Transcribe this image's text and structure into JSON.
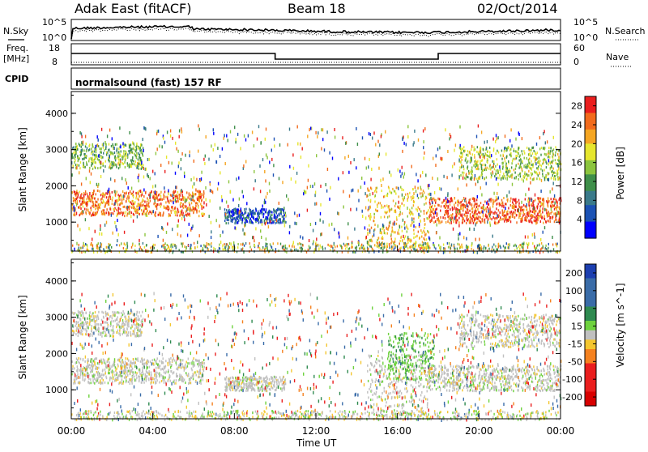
{
  "header": {
    "title": "Adak East (fitACF)",
    "beam": "Beam 18",
    "date": "02/Oct/2014"
  },
  "labels": {
    "nsky": "N.Sky",
    "nsearch": "N.Search",
    "freq_top": "Freq.",
    "freq_unit": "[MHz]",
    "nave": "Nave",
    "cpid": "CPID",
    "cpid_value": "normalsound (fast) 157 RF",
    "noise_tick_hi": "10^5",
    "noise_tick_lo": "10^0",
    "freq_tick_hi": "18",
    "freq_tick_lo": "8",
    "nave_tick_hi": "60",
    "nave_tick_lo": "0"
  },
  "colors": {
    "power_scale": [
      "#0000ff",
      "#1c52b4",
      "#3a7a8a",
      "#3f8f4a",
      "#8cc53e",
      "#e6e62e",
      "#f5a623",
      "#f26b1d",
      "#ea1e1e"
    ],
    "velocity_scale": [
      "#1c3fb0",
      "#3a6ca8",
      "#2f8a50",
      "#6ed23e",
      "#c0c0c0",
      "#c0c0c0",
      "#f4c630",
      "#f58220",
      "#ea1e1e",
      "#d80000"
    ]
  },
  "chart_data": [
    {
      "type": "heatmap",
      "title": "",
      "xlabel": "Time UT",
      "ylabel": "Slant Range [km]",
      "x_ticks": [
        "00:00",
        "04:00",
        "08:00",
        "12:00",
        "16:00",
        "20:00",
        "00:00"
      ],
      "y_ticks": [
        "1000",
        "2000",
        "3000",
        "4000"
      ],
      "ylim": [
        200,
        4600
      ],
      "xlim_hours": [
        0,
        24
      ],
      "colorbar": {
        "label": "Power [dB]",
        "ticks": [
          "4",
          "8",
          "12",
          "16",
          "20",
          "24",
          "28"
        ],
        "range": [
          0,
          30
        ]
      },
      "features": [
        {
          "start_h": 0.0,
          "end_h": 6.5,
          "range_km": [
            1200,
            1900
          ],
          "level": 24
        },
        {
          "start_h": 0.0,
          "end_h": 3.5,
          "range_km": [
            2500,
            3200
          ],
          "level": 14
        },
        {
          "start_h": 7.5,
          "end_h": 10.5,
          "range_km": [
            1000,
            1400
          ],
          "level": 6
        },
        {
          "start_h": 14.5,
          "end_h": 17.5,
          "range_km": [
            300,
            2000
          ],
          "level": 20
        },
        {
          "start_h": 17.5,
          "end_h": 24.0,
          "range_km": [
            1000,
            1700
          ],
          "level": 26
        },
        {
          "start_h": 19.0,
          "end_h": 24.0,
          "range_km": [
            2200,
            3100
          ],
          "level": 16
        }
      ]
    },
    {
      "type": "heatmap",
      "title": "",
      "xlabel": "Time UT",
      "ylabel": "Slant Range [km]",
      "x_ticks": [
        "00:00",
        "04:00",
        "08:00",
        "12:00",
        "16:00",
        "20:00",
        "00:00"
      ],
      "y_ticks": [
        "1000",
        "2000",
        "3000",
        "4000"
      ],
      "ylim": [
        200,
        4600
      ],
      "xlim_hours": [
        0,
        24
      ],
      "colorbar": {
        "label": "Velocity [m s^-1]",
        "ticks": [
          "200",
          "100",
          "50",
          "15",
          "-15",
          "-50",
          "-100",
          "-200"
        ],
        "range": [
          -250,
          250
        ]
      },
      "features": [
        {
          "start_h": 0.0,
          "end_h": 6.5,
          "range_km": [
            1200,
            1900
          ],
          "velocity": 0
        },
        {
          "start_h": 0.0,
          "end_h": 3.5,
          "range_km": [
            2500,
            3200
          ],
          "velocity": 0
        },
        {
          "start_h": 7.5,
          "end_h": 10.5,
          "range_km": [
            1000,
            1400
          ],
          "velocity": 0
        },
        {
          "start_h": 14.5,
          "end_h": 17.5,
          "range_km": [
            300,
            2000
          ],
          "velocity": 0
        },
        {
          "start_h": 15.5,
          "end_h": 17.8,
          "range_km": [
            1300,
            2600
          ],
          "velocity": 40
        },
        {
          "start_h": 17.5,
          "end_h": 24.0,
          "range_km": [
            1000,
            1700
          ],
          "velocity": 0
        },
        {
          "start_h": 19.0,
          "end_h": 24.0,
          "range_km": [
            2200,
            3100
          ],
          "velocity": 0
        }
      ]
    }
  ]
}
